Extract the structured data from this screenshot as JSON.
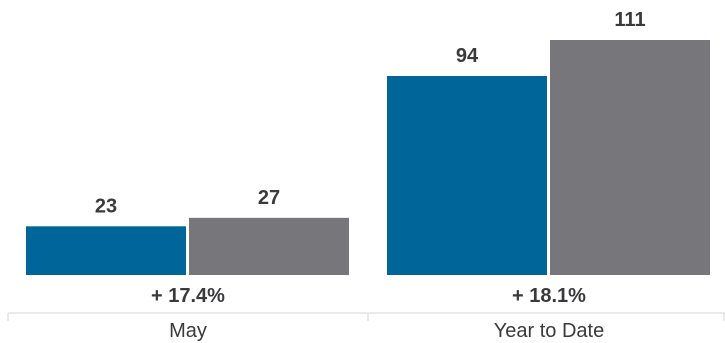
{
  "chart_data": {
    "type": "bar",
    "categories": [
      "May",
      "Year to Date"
    ],
    "series": [
      {
        "values": [
          23,
          94
        ],
        "color": "#006699"
      },
      {
        "values": [
          27,
          111
        ],
        "color": "#77767b"
      }
    ],
    "changes": [
      "+ 17.4%",
      "+ 18.1%"
    ],
    "ylim": [
      0,
      111
    ],
    "grid": false,
    "legend": "none"
  }
}
